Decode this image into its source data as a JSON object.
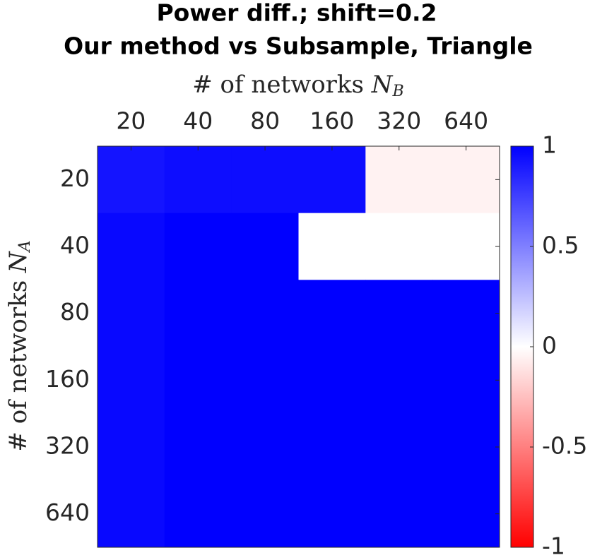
{
  "chart_data": {
    "type": "heatmap",
    "title": [
      "Power diff.; shift=0.2",
      "Our method vs Subsample, Triangle"
    ],
    "xlabel": {
      "text": "# of networks",
      "symbol": "N",
      "subscript": "B"
    },
    "ylabel": {
      "text": "# of networks",
      "symbol": "N",
      "subscript": "A"
    },
    "x_categories": [
      "20",
      "40",
      "80",
      "160",
      "320",
      "640"
    ],
    "y_categories": [
      "20",
      "40",
      "80",
      "160",
      "320",
      "640"
    ],
    "values": [
      [
        0.92,
        0.95,
        0.95,
        0.95,
        -0.05,
        -0.05
      ],
      [
        0.97,
        1,
        1,
        0,
        0,
        0
      ],
      [
        0.97,
        1,
        1,
        1,
        1,
        1
      ],
      [
        0.97,
        1,
        1,
        1,
        1,
        1
      ],
      [
        0.97,
        1,
        1,
        1,
        1,
        1
      ],
      [
        0.97,
        1,
        1,
        1,
        1,
        1
      ]
    ],
    "clim": [
      -1,
      1
    ],
    "cticks": [
      -1,
      -0.5,
      0,
      0.5,
      1
    ],
    "colormap": {
      "low": "#ff0000",
      "mid": "#ffffff",
      "high": "#0000ff"
    }
  }
}
